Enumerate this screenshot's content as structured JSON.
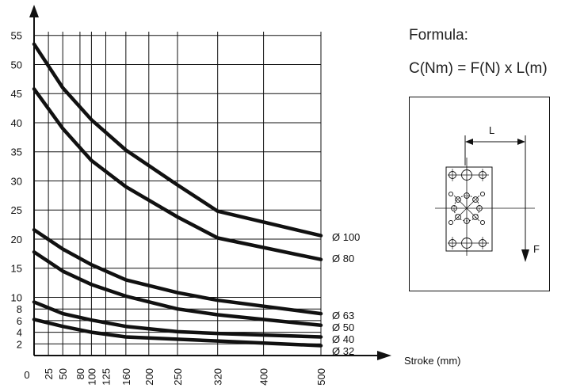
{
  "chart_data": {
    "type": "line",
    "xlabel": "Stroke (mm)",
    "ylabel": "",
    "x_ticks": [
      0,
      25,
      50,
      80,
      100,
      125,
      160,
      200,
      250,
      320,
      400,
      500
    ],
    "y_ticks": [
      2,
      4,
      6,
      8,
      10,
      15,
      20,
      25,
      30,
      35,
      40,
      45,
      50,
      55
    ],
    "xlim": [
      0,
      500
    ],
    "ylim": [
      0,
      57
    ],
    "grid": true,
    "series": [
      {
        "name": "Ø 100",
        "x": [
          0,
          50,
          100,
          160,
          250,
          320,
          500
        ],
        "y": [
          53.5,
          46,
          40.5,
          35.3,
          29.3,
          24.8,
          20.6
        ]
      },
      {
        "name": "Ø 80",
        "x": [
          0,
          50,
          100,
          160,
          250,
          320,
          500
        ],
        "y": [
          45.8,
          39,
          33.5,
          29,
          23.8,
          20.2,
          16.5
        ]
      },
      {
        "name": "Ø 63",
        "x": [
          0,
          50,
          100,
          160,
          250,
          320,
          500
        ],
        "y": [
          21.6,
          18.3,
          15.6,
          13,
          10.8,
          9.5,
          7.2
        ]
      },
      {
        "name": "Ø 50",
        "x": [
          0,
          50,
          100,
          160,
          250,
          320,
          500
        ],
        "y": [
          17.8,
          14.5,
          12.2,
          10.2,
          8,
          7,
          5.2
        ]
      },
      {
        "name": "Ø 40",
        "x": [
          0,
          50,
          100,
          160,
          250,
          320,
          500
        ],
        "y": [
          9.2,
          7.2,
          6.1,
          5,
          4.1,
          3.8,
          3.2
        ]
      },
      {
        "name": "Ø 32",
        "x": [
          0,
          50,
          100,
          160,
          250,
          320,
          500
        ],
        "y": [
          6.2,
          5,
          4,
          3.2,
          2.8,
          2.5,
          1.7
        ]
      }
    ]
  },
  "formula": {
    "title": "Formula:",
    "equation": "C(Nm) = F(N) x L(m)"
  },
  "diagram": {
    "length_label": "L",
    "force_label": "F"
  }
}
